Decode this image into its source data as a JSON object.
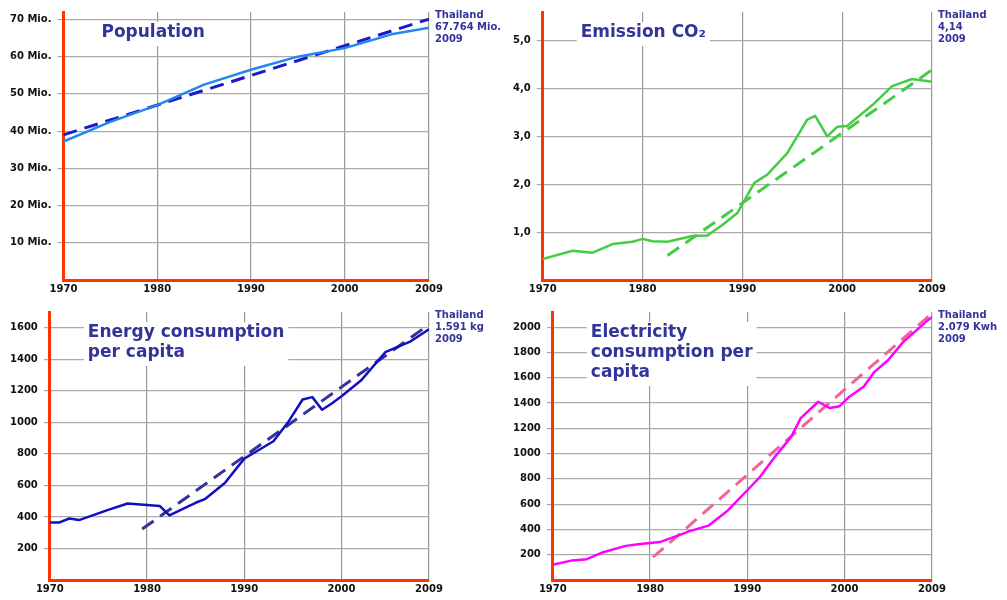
{
  "chart_data": [
    {
      "type": "line",
      "title": "Population",
      "xlim": [
        1970,
        2009
      ],
      "xticks": [
        1970,
        1980,
        1990,
        2000,
        2009
      ],
      "ylim": [
        0,
        72
      ],
      "yticks": [
        {
          "value": 10,
          "label": "10 Mio."
        },
        {
          "value": 20,
          "label": "20 Mio."
        },
        {
          "value": 30,
          "label": "30 Mio."
        },
        {
          "value": 40,
          "label": "40 Mio."
        },
        {
          "value": 50,
          "label": "50 Mio."
        },
        {
          "value": 60,
          "label": "60 Mio."
        },
        {
          "value": 70,
          "label": "70 Mio."
        }
      ],
      "grid": true,
      "legend": false,
      "marker": "none",
      "annotations": [
        "Thailand\n67.764 Mio.\n2009"
      ],
      "series": [
        {
          "color": "#2288ee",
          "line_style": "solid",
          "x": [
            1970,
            1975,
            1980,
            1985,
            1990,
            1995,
            2000,
            2005,
            2009
          ],
          "values": [
            37.2,
            42.5,
            47,
            52.5,
            56.5,
            60,
            62.3,
            66,
            67.764
          ]
        },
        {
          "color": "#1a1acc",
          "line_style": "dashed",
          "x": [
            1970,
            2009
          ],
          "values": [
            39,
            70.1
          ]
        }
      ]
    },
    {
      "type": "line",
      "title": "Emission CO₂",
      "xlim": [
        1970,
        2009
      ],
      "xticks": [
        1970,
        1980,
        1990,
        2000,
        2009
      ],
      "ylim": [
        0,
        5.6
      ],
      "yticks": [
        {
          "value": 1,
          "label": "1,0"
        },
        {
          "value": 2,
          "label": "2,0"
        },
        {
          "value": 3,
          "label": "3,0"
        },
        {
          "value": 4,
          "label": "4,0"
        },
        {
          "value": 5,
          "label": "5,0"
        }
      ],
      "grid": true,
      "legend": false,
      "marker": "none",
      "annotations": [
        "Thailand\n4,14\n2009"
      ],
      "series": [
        {
          "color": "#44cc44",
          "line_style": "solid",
          "x": [
            1970,
            1973,
            1975,
            1977,
            1979,
            1980,
            1981,
            1982.5,
            1985,
            1986.5,
            1988,
            1989.5,
            1991.2,
            1992.5,
            1994.5,
            1996.5,
            1997.3,
            1998.5,
            1999.5,
            2000.5,
            2003,
            2005,
            2007,
            2009
          ],
          "values": [
            0.44,
            0.61,
            0.57,
            0.75,
            0.8,
            0.86,
            0.81,
            0.8,
            0.92,
            0.93,
            1.15,
            1.4,
            2.03,
            2.2,
            2.65,
            3.35,
            3.43,
            3.0,
            3.2,
            3.22,
            3.65,
            4.05,
            4.2,
            4.14
          ]
        },
        {
          "color": "#44cc44",
          "line_style": "dashed",
          "x": [
            1982.5,
            2009
          ],
          "values": [
            0.51,
            4.39
          ]
        }
      ]
    },
    {
      "type": "line",
      "title": "Energy consumption per capita",
      "xlim": [
        1970,
        2009
      ],
      "xticks": [
        1970,
        1980,
        1990,
        2000,
        2009
      ],
      "ylim": [
        0,
        1700
      ],
      "yticks": [
        200,
        400,
        600,
        800,
        1000,
        1200,
        1400,
        1600
      ],
      "grid": true,
      "legend": false,
      "marker": "none",
      "annotations": [
        "Thailand\n1.591 kg\n2009"
      ],
      "series": [
        {
          "color": "#1010c0",
          "line_style": "solid",
          "x": [
            1970,
            1971,
            1972,
            1973,
            1976,
            1978,
            1981.3,
            1982.3,
            1985,
            1986,
            1988,
            1990,
            1993,
            1994.5,
            1996,
            1997,
            1998,
            1999,
            2000,
            2002,
            2004.5,
            2007,
            2009
          ],
          "values": [
            365,
            365,
            390,
            380,
            445,
            485,
            470,
            410,
            490,
            515,
            615,
            770,
            880,
            1000,
            1145,
            1160,
            1080,
            1120,
            1165,
            1265,
            1445,
            1510,
            1591
          ]
        },
        {
          "color": "#333399",
          "line_style": "dashed",
          "x": [
            1979.5,
            2009
          ],
          "values": [
            323,
            1620
          ]
        }
      ]
    },
    {
      "type": "line",
      "title": "Electricity consumption per capita",
      "xlim": [
        1970,
        2009
      ],
      "xticks": [
        1970,
        1980,
        1990,
        2000,
        2009
      ],
      "ylim": [
        0,
        2120
      ],
      "yticks": [
        200,
        400,
        600,
        800,
        1000,
        1200,
        1400,
        1600,
        1800,
        2000
      ],
      "grid": true,
      "legend": false,
      "marker": "none",
      "annotations": [
        "Thailand\n2.079 Kwh\n2009"
      ],
      "series": [
        {
          "color": "#ff00ff",
          "line_style": "solid",
          "x": [
            1970,
            1972,
            1973.5,
            1975,
            1977.5,
            1979,
            1981,
            1983,
            1984,
            1986,
            1988,
            1990,
            1991.2,
            1993,
            1994.5,
            1995.5,
            1997.3,
            1998.5,
            1999.5,
            2000.5,
            2002,
            2003,
            2004.5,
            2006,
            2008.5,
            2009
          ],
          "values": [
            120,
            155,
            165,
            215,
            270,
            285,
            300,
            355,
            385,
            430,
            550,
            710,
            805,
            990,
            1130,
            1280,
            1410,
            1360,
            1375,
            1450,
            1530,
            1640,
            1740,
            1880,
            2050,
            2079
          ]
        },
        {
          "color": "#ee6699",
          "line_style": "dashed",
          "x": [
            1980.3,
            2009
          ],
          "values": [
            180,
            2110
          ]
        }
      ]
    }
  ]
}
